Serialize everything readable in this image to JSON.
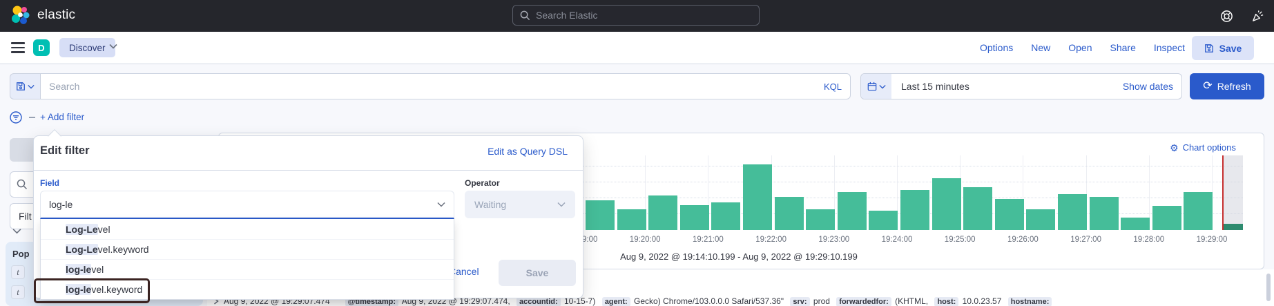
{
  "topbar": {
    "logo_text": "elastic",
    "search_placeholder": "Search Elastic",
    "news_dot_color": "#F238A3"
  },
  "navbar": {
    "app_badge": "D",
    "breadcrumb": "Discover",
    "actions": [
      "Options",
      "New",
      "Open",
      "Share",
      "Inspect"
    ],
    "save_label": "Save"
  },
  "querybar": {
    "search_placeholder": "Search",
    "kql_label": "KQL",
    "time_range": "Last 15 minutes",
    "show_dates_label": "Show dates",
    "refresh_label": "Refresh"
  },
  "filter_bar": {
    "add_filter_label": "+ Add filter"
  },
  "sidebar": {
    "filter_by_type_visible": "Filt",
    "popular_visible": "Pop",
    "field_type_badges": [
      "t",
      "t"
    ]
  },
  "popup": {
    "title": "Edit filter",
    "edit_dsl_label": "Edit as Query DSL",
    "field_label": "Field",
    "field_value": "log-le",
    "operator_label": "Operator",
    "operator_placeholder": "Waiting",
    "cancel_label": "Cancel",
    "save_label": "Save",
    "field_options": [
      {
        "match": "Log-Le",
        "rest": "vel",
        "annotated": false
      },
      {
        "match": "Log-Le",
        "rest": "vel.keyword",
        "annotated": false
      },
      {
        "match": "log-le",
        "rest": "vel",
        "annotated": false
      },
      {
        "match": "log-le",
        "rest": "vel.keyword",
        "annotated": true
      }
    ]
  },
  "chart": {
    "options_label": "Chart options"
  },
  "chart_data": {
    "type": "bar",
    "title": "Aug 9, 2022 @ 19:14:10.199 - Aug 9, 2022 @ 19:29:10.199",
    "xlabel": "",
    "ylabel": "",
    "legend": false,
    "grid": true,
    "x_tick_labels": [
      "19:19:00",
      "19:20:00",
      "19:21:00",
      "19:22:00",
      "19:23:00",
      "19:24:00",
      "19:25:00",
      "19:26:00",
      "19:27:00",
      "19:28:00",
      "19:29:00"
    ],
    "bucket_interval_seconds": 30,
    "x": [
      "19:19:00",
      "19:19:30",
      "19:20:00",
      "19:20:30",
      "19:21:00",
      "19:21:30",
      "19:22:00",
      "19:22:30",
      "19:23:00",
      "19:23:30",
      "19:24:00",
      "19:24:30",
      "19:25:00",
      "19:25:30",
      "19:26:00",
      "19:26:30",
      "19:27:00",
      "19:27:30",
      "19:28:00",
      "19:28:30"
    ],
    "values": [
      43,
      30,
      50,
      36,
      40,
      95,
      48,
      30,
      55,
      28,
      58,
      75,
      62,
      45,
      30,
      52,
      48,
      18,
      35,
      55
    ],
    "values_note": "relative doc counts estimated from bar heights; y axis unlabeled in view",
    "partial_bucket": {
      "time": "19:29:00",
      "value": 9
    },
    "current_time_marker": "19:29:10",
    "bar_color": "#45BD99",
    "partial_bar_color": "#2E8B6F",
    "marker_color": "#C63030"
  },
  "doc_row": {
    "timestamp": "Aug 9, 2022 @ 19:29:07.474",
    "source": [
      [
        "@timestamp",
        "Aug 9, 2022 @ 19:29:07.474,"
      ],
      [
        "accountid",
        "10-15-7)"
      ],
      [
        "agent",
        "Gecko) Chrome/103.0.0.0 Safari/537.36\""
      ],
      [
        "srv",
        "prod"
      ],
      [
        "forwardedfor",
        "(KHTML,"
      ],
      [
        "host",
        "10.0.23.57"
      ],
      [
        "hostname",
        ""
      ]
    ]
  },
  "colors": {
    "accent": "#2A5ACB",
    "topbar_bg": "#25262C",
    "app_badge_bg": "#00BFB3",
    "annotation_border": "#3B2422"
  }
}
